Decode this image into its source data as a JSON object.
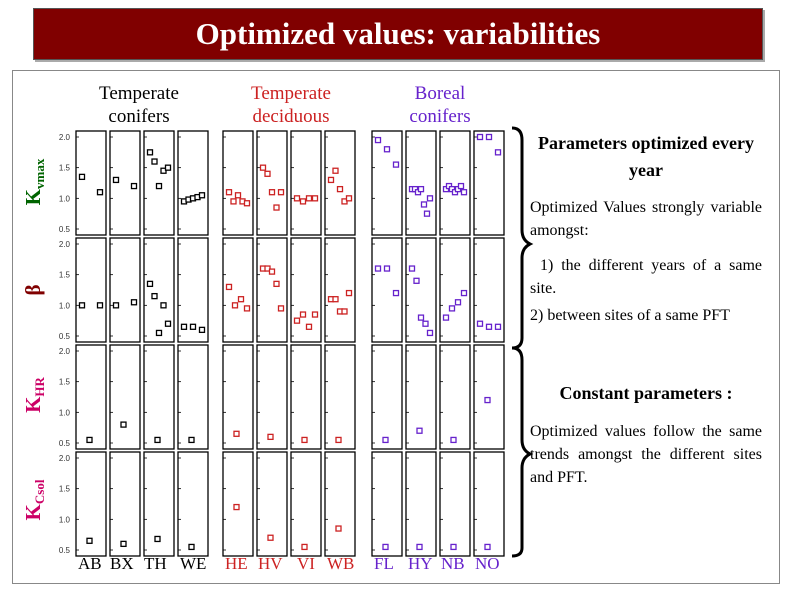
{
  "title": "Optimized values: variabilities",
  "groups": [
    {
      "label": "Temperate conifers",
      "color": "#000000"
    },
    {
      "label": "Temperate deciduous",
      "color": "#cc2222"
    },
    {
      "label": "Boreal conifers",
      "color": "#6622cc"
    }
  ],
  "rows": [
    {
      "label": "Kvmax",
      "main": "K",
      "sub": "vmax",
      "color": "#006400"
    },
    {
      "label": "β",
      "main": "β",
      "sub": "",
      "color": "#800000"
    },
    {
      "label": "KHR",
      "main": "K",
      "sub": "HR",
      "color": "#cc0066"
    },
    {
      "label": "KCsol",
      "main": "K",
      "sub": "Csol",
      "color": "#cc0066"
    }
  ],
  "sites": [
    "AB",
    "BX",
    "TH",
    "WE",
    "HE",
    "HV",
    "VI",
    "WB",
    "FL",
    "HY",
    "NB",
    "NO"
  ],
  "site_colors": [
    "#000000",
    "#000000",
    "#000000",
    "#000000",
    "#cc2222",
    "#cc2222",
    "#cc2222",
    "#cc2222",
    "#6622cc",
    "#6622cc",
    "#6622cc",
    "#6622cc"
  ],
  "right": {
    "head1": "Parameters optimized every year",
    "text1": "Optimized Values strongly variable amongst:",
    "text2": "1) the different years of a same site.",
    "text3": "2) between sites of a same PFT",
    "head2": "Constant parameters :",
    "text4": "Optimized values follow the same trends amongst the different sites and PFT."
  },
  "chart_data": {
    "type": "scatter",
    "title": "Optimized values: variabilities",
    "ylim": [
      0.5,
      2.0
    ],
    "yticks": [
      "0.5",
      "1.0",
      "1.5",
      "2.0"
    ],
    "row_names": [
      "Kvmax",
      "β",
      "KHR",
      "KCsol"
    ],
    "categories": [
      "AB",
      "BX",
      "TH",
      "WE",
      "HE",
      "HV",
      "VI",
      "WB",
      "FL",
      "HY",
      "NB",
      "NO"
    ],
    "values": [
      [
        [
          1.35,
          1.1
        ],
        [
          1.3,
          1.2
        ],
        [
          1.75,
          1.6,
          1.2,
          1.45,
          1.5
        ],
        [
          0.95,
          0.98,
          1.0,
          1.02,
          1.05
        ],
        [
          1.1,
          0.95,
          1.05,
          0.95,
          0.92
        ],
        [
          1.5,
          1.4,
          1.1,
          0.85,
          1.1
        ],
        [
          1.0,
          0.95,
          1.0,
          1.0
        ],
        [
          1.3,
          1.45,
          1.15,
          0.95,
          1.0
        ],
        [
          1.95,
          1.8,
          1.55
        ],
        [
          1.15,
          1.15,
          1.1,
          1.15,
          0.9,
          0.75,
          1.0
        ],
        [
          1.15,
          1.2,
          1.15,
          1.1,
          1.15,
          1.2,
          1.1
        ],
        [
          2.0,
          2.0,
          1.75
        ]
      ],
      [
        [
          1.0,
          1.0
        ],
        [
          1.0,
          1.05
        ],
        [
          1.35,
          1.15,
          0.55,
          1.0,
          0.7
        ],
        [
          0.65,
          0.65,
          0.6
        ],
        [
          1.3,
          1.0,
          1.1,
          0.95
        ],
        [
          1.6,
          1.6,
          1.55,
          1.35,
          0.95
        ],
        [
          0.75,
          0.85,
          0.65,
          0.85
        ],
        [
          1.1,
          1.1,
          0.9,
          0.9,
          1.2
        ],
        [
          1.6,
          1.6,
          1.2
        ],
        [
          1.6,
          1.4,
          0.8,
          0.7,
          0.55
        ],
        [
          0.8,
          0.95,
          1.05,
          1.2
        ],
        [
          0.7,
          0.65,
          0.65
        ]
      ],
      [
        [
          0.55
        ],
        [
          0.8
        ],
        [
          0.55
        ],
        [
          0.55
        ],
        [
          0.65
        ],
        [
          0.6
        ],
        [
          0.55
        ],
        [
          0.55
        ],
        [
          0.55
        ],
        [
          0.7
        ],
        [
          0.55
        ],
        [
          1.2
        ]
      ],
      [
        [
          0.65
        ],
        [
          0.6
        ],
        [
          0.68
        ],
        [
          0.55
        ],
        [
          1.2
        ],
        [
          0.7
        ],
        [
          0.55
        ],
        [
          0.85
        ],
        [
          0.55
        ],
        [
          0.55
        ],
        [
          0.55
        ],
        [
          0.55
        ]
      ]
    ]
  }
}
